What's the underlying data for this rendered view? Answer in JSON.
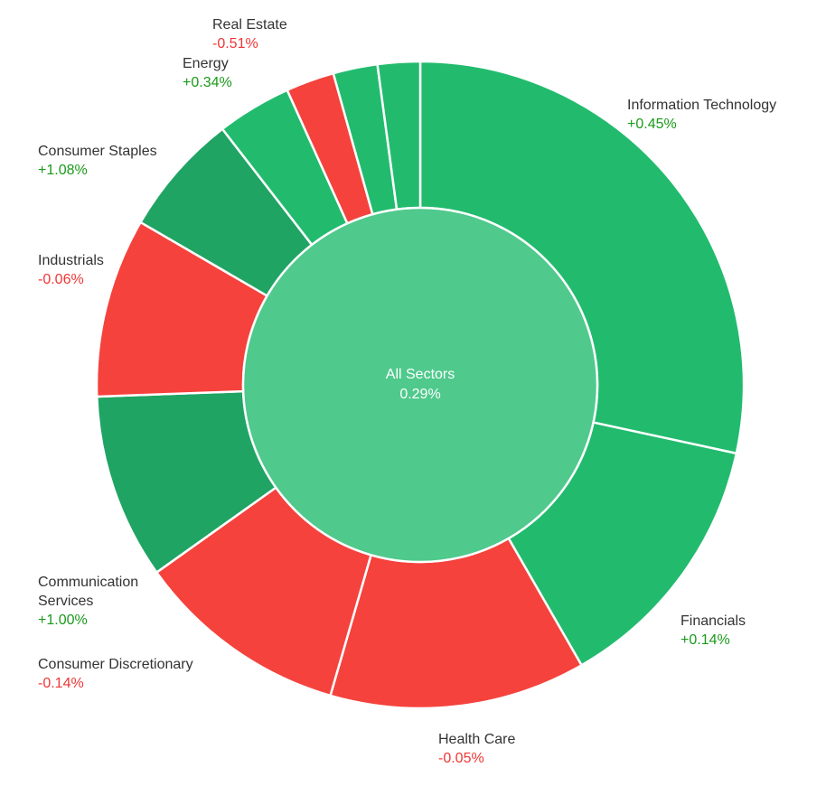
{
  "colors": {
    "positive": "#22bb6e",
    "positive_dark": "#1fa463",
    "negative": "#f5423d",
    "center": "#4fc98c",
    "text_positive": "#1a9a1a",
    "text_negative": "#f03535"
  },
  "chart_data": {
    "type": "pie",
    "center_label": {
      "name": "All Sectors",
      "value": "0.29%"
    },
    "slices": [
      {
        "name": "Information Technology",
        "change": "+0.45%",
        "share": 28.2,
        "sign": "positive"
      },
      {
        "name": "Financials",
        "change": "+0.14%",
        "share": 13.2,
        "sign": "positive"
      },
      {
        "name": "Health Care",
        "change": "-0.05%",
        "share": 12.7,
        "sign": "negative"
      },
      {
        "name": "Consumer Discretionary",
        "change": "-0.14%",
        "share": 10.6,
        "sign": "negative"
      },
      {
        "name": "Communication Services",
        "change": "+1.00%",
        "share": 9.2,
        "sign": "positive_dark"
      },
      {
        "name": "Industrials",
        "change": "-0.06%",
        "share": 8.9,
        "sign": "negative"
      },
      {
        "name": "Consumer Staples",
        "change": "+1.08%",
        "share": 6.1,
        "sign": "positive_dark"
      },
      {
        "name": "Energy",
        "change": "+0.34%",
        "share": 3.7,
        "sign": "positive"
      },
      {
        "name": "Real Estate",
        "change": "-0.51%",
        "share": 2.4,
        "sign": "negative"
      },
      {
        "name": "",
        "change": "",
        "share": 2.2,
        "sign": "positive"
      },
      {
        "name": "",
        "change": "",
        "share": 2.1,
        "sign": "positive"
      }
    ]
  }
}
